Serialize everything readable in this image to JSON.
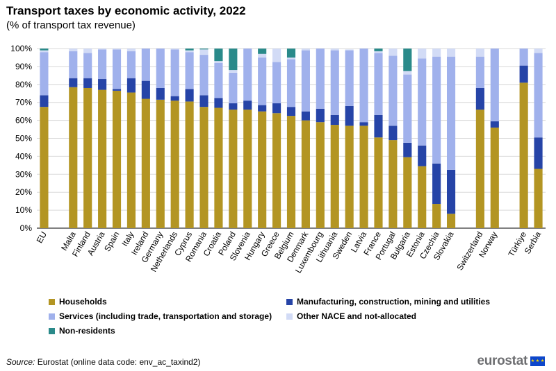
{
  "header": {
    "title": "Transport taxes by economic activity, 2022",
    "subtitle": "(% of transport tax revenue)"
  },
  "chart_data": {
    "type": "bar",
    "stacked": true,
    "categories": [
      "EU",
      "",
      "Malta",
      "Finland",
      "Austria",
      "Spain",
      "Italy",
      "Ireland",
      "Germany",
      "Netherlands",
      "Cyprus",
      "Romania",
      "Croatia",
      "Poland",
      "Slovenia",
      "Hungary",
      "Greece",
      "Belgium",
      "Denmark",
      "Luxembourg",
      "Lithuania",
      "Sweden",
      "Latvia",
      "France",
      "Portugal",
      "Bulgaria",
      "Estonia",
      "Czechia",
      "Slovakia",
      "",
      "Switzerland",
      "Norway",
      "",
      "Türkiye",
      "Serbia"
    ],
    "series": [
      {
        "name": "Households",
        "color": "#b39523",
        "values": [
          67.5,
          null,
          78.5,
          78,
          77,
          76.5,
          75.5,
          72,
          71.5,
          71,
          70.5,
          67.5,
          67,
          66,
          66,
          65,
          64,
          62.5,
          60,
          59,
          57.5,
          57,
          57,
          50.5,
          49,
          39.5,
          34.5,
          13.5,
          8,
          null,
          66,
          56,
          null,
          81,
          33
        ]
      },
      {
        "name": "Manufacturing, construction, mining and utilities",
        "color": "#2644a7",
        "values": [
          6.5,
          null,
          5,
          5.5,
          6,
          1,
          8,
          10,
          6.5,
          2.5,
          7,
          6.5,
          5.5,
          3.5,
          5,
          3.5,
          5.5,
          5,
          5,
          7.5,
          5.5,
          11,
          2,
          12.5,
          8,
          8,
          11.5,
          22.5,
          24.5,
          null,
          12,
          3.5,
          null,
          9.5,
          17.5
        ]
      },
      {
        "name": "Services (including trade, transportation and storage)",
        "color": "#a0b1ec",
        "values": [
          24,
          null,
          15,
          14,
          16.5,
          22,
          15,
          18,
          22,
          26,
          20.5,
          22.5,
          19.5,
          17,
          29,
          26.5,
          23,
          26.5,
          34,
          33.5,
          36,
          31,
          41,
          34.5,
          39,
          38,
          48.5,
          59.5,
          63,
          null,
          17.5,
          40.5,
          null,
          9.5,
          47
        ]
      },
      {
        "name": "Other NACE and not-allocated",
        "color": "#d2dbf6",
        "values": [
          1,
          null,
          1.5,
          2.5,
          0.5,
          0.5,
          1.5,
          0,
          0,
          0.5,
          1,
          3,
          1,
          1.5,
          0,
          2,
          7.5,
          1,
          1,
          0,
          1,
          0.5,
          0,
          1,
          4,
          2,
          5.5,
          4.5,
          4.5,
          null,
          4.5,
          0,
          null,
          0,
          2.5
        ]
      },
      {
        "name": "Non-residents",
        "color": "#388ae2",
        "values": [
          1,
          null,
          0,
          0,
          0,
          0,
          0,
          0,
          0,
          0,
          1,
          0.5,
          7,
          12,
          0,
          3,
          0,
          5,
          0,
          0,
          0,
          0,
          0,
          1.5,
          0,
          12.5,
          0,
          0,
          0,
          null,
          0,
          0,
          null,
          0,
          0
        ]
      }
    ],
    "yticks": [
      "0%",
      "10%",
      "20%",
      "30%",
      "40%",
      "50%",
      "60%",
      "70%",
      "80%",
      "90%",
      "100%"
    ],
    "ylim": [
      0,
      100
    ],
    "legend_position": "bottom",
    "grid": true
  },
  "legend": {
    "items": [
      {
        "label": "Households",
        "color": "#b39523"
      },
      {
        "label": "Manufacturing, construction, mining and utilities",
        "color": "#2644a7"
      },
      {
        "label": "Services (including trade, transportation and storage)",
        "color": "#a0b1ec"
      },
      {
        "label": "Other NACE and not-allocated",
        "color": "#d2dbf6"
      },
      {
        "label": "Non-residents",
        "color": "#2a8a8a"
      }
    ]
  },
  "footer": {
    "source_label": "Source:",
    "source_text": "Eurostat (online data code: env_ac_taxind2)",
    "brand": "eurostat"
  }
}
